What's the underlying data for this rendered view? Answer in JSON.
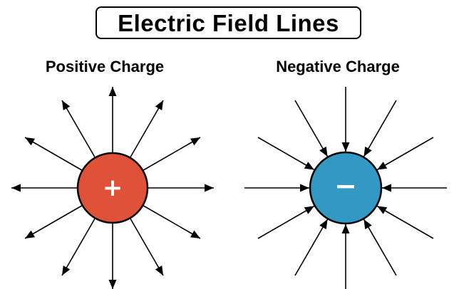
{
  "title": "Electric Field Lines",
  "panels": [
    {
      "label": "Positive Charge",
      "charge_symbol": "+",
      "charge_color": "#e0513a",
      "field_direction": "outward",
      "field_line_count": 12
    },
    {
      "label": "Negative Charge",
      "charge_symbol": "−",
      "charge_color": "#3399c4",
      "field_direction": "inward",
      "field_line_count": 12
    }
  ],
  "colors": {
    "line": "#000000",
    "charge_outline": "#000000",
    "sign": "#ffffff"
  }
}
